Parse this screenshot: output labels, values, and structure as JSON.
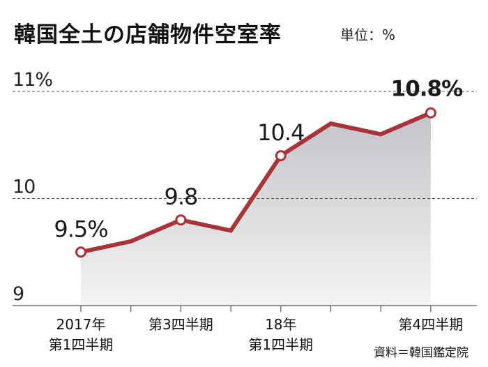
{
  "title": "韓国全土の店舗物件空室率",
  "unit": "単位：%",
  "source": "資料＝韓国鑑定院",
  "colors": {
    "line": "#a8333a",
    "area_top": "#c4c4c8",
    "area_bottom": "#f4f4f6",
    "grid": "#555555"
  },
  "chart_data": {
    "type": "area",
    "title": "韓国全土の店舗物件空室率",
    "ylabel": "単位：%",
    "ylim": [
      9,
      11
    ],
    "yticks": [
      {
        "value": 11,
        "label": "11%"
      },
      {
        "value": 10,
        "label": "10"
      },
      {
        "value": 9,
        "label": "9"
      }
    ],
    "x": [
      0,
      1,
      2,
      3,
      4,
      5,
      6,
      7
    ],
    "x_tick_labels": [
      {
        "x": 0,
        "label": "2017年\n第1四半期"
      },
      {
        "x": 2,
        "label": "第3四半期"
      },
      {
        "x": 4,
        "label": "18年\n第1四半期"
      },
      {
        "x": 7,
        "label": "第4四半期"
      }
    ],
    "values": [
      9.5,
      9.6,
      9.8,
      9.7,
      10.4,
      10.7,
      10.6,
      10.8
    ],
    "markers": [
      0,
      2,
      4,
      7
    ],
    "data_labels": [
      {
        "index": 0,
        "label": "9.5%"
      },
      {
        "index": 2,
        "label": "9.8"
      },
      {
        "index": 4,
        "label": "10.4"
      },
      {
        "index": 7,
        "label": "10.8%"
      }
    ],
    "grid": true
  }
}
